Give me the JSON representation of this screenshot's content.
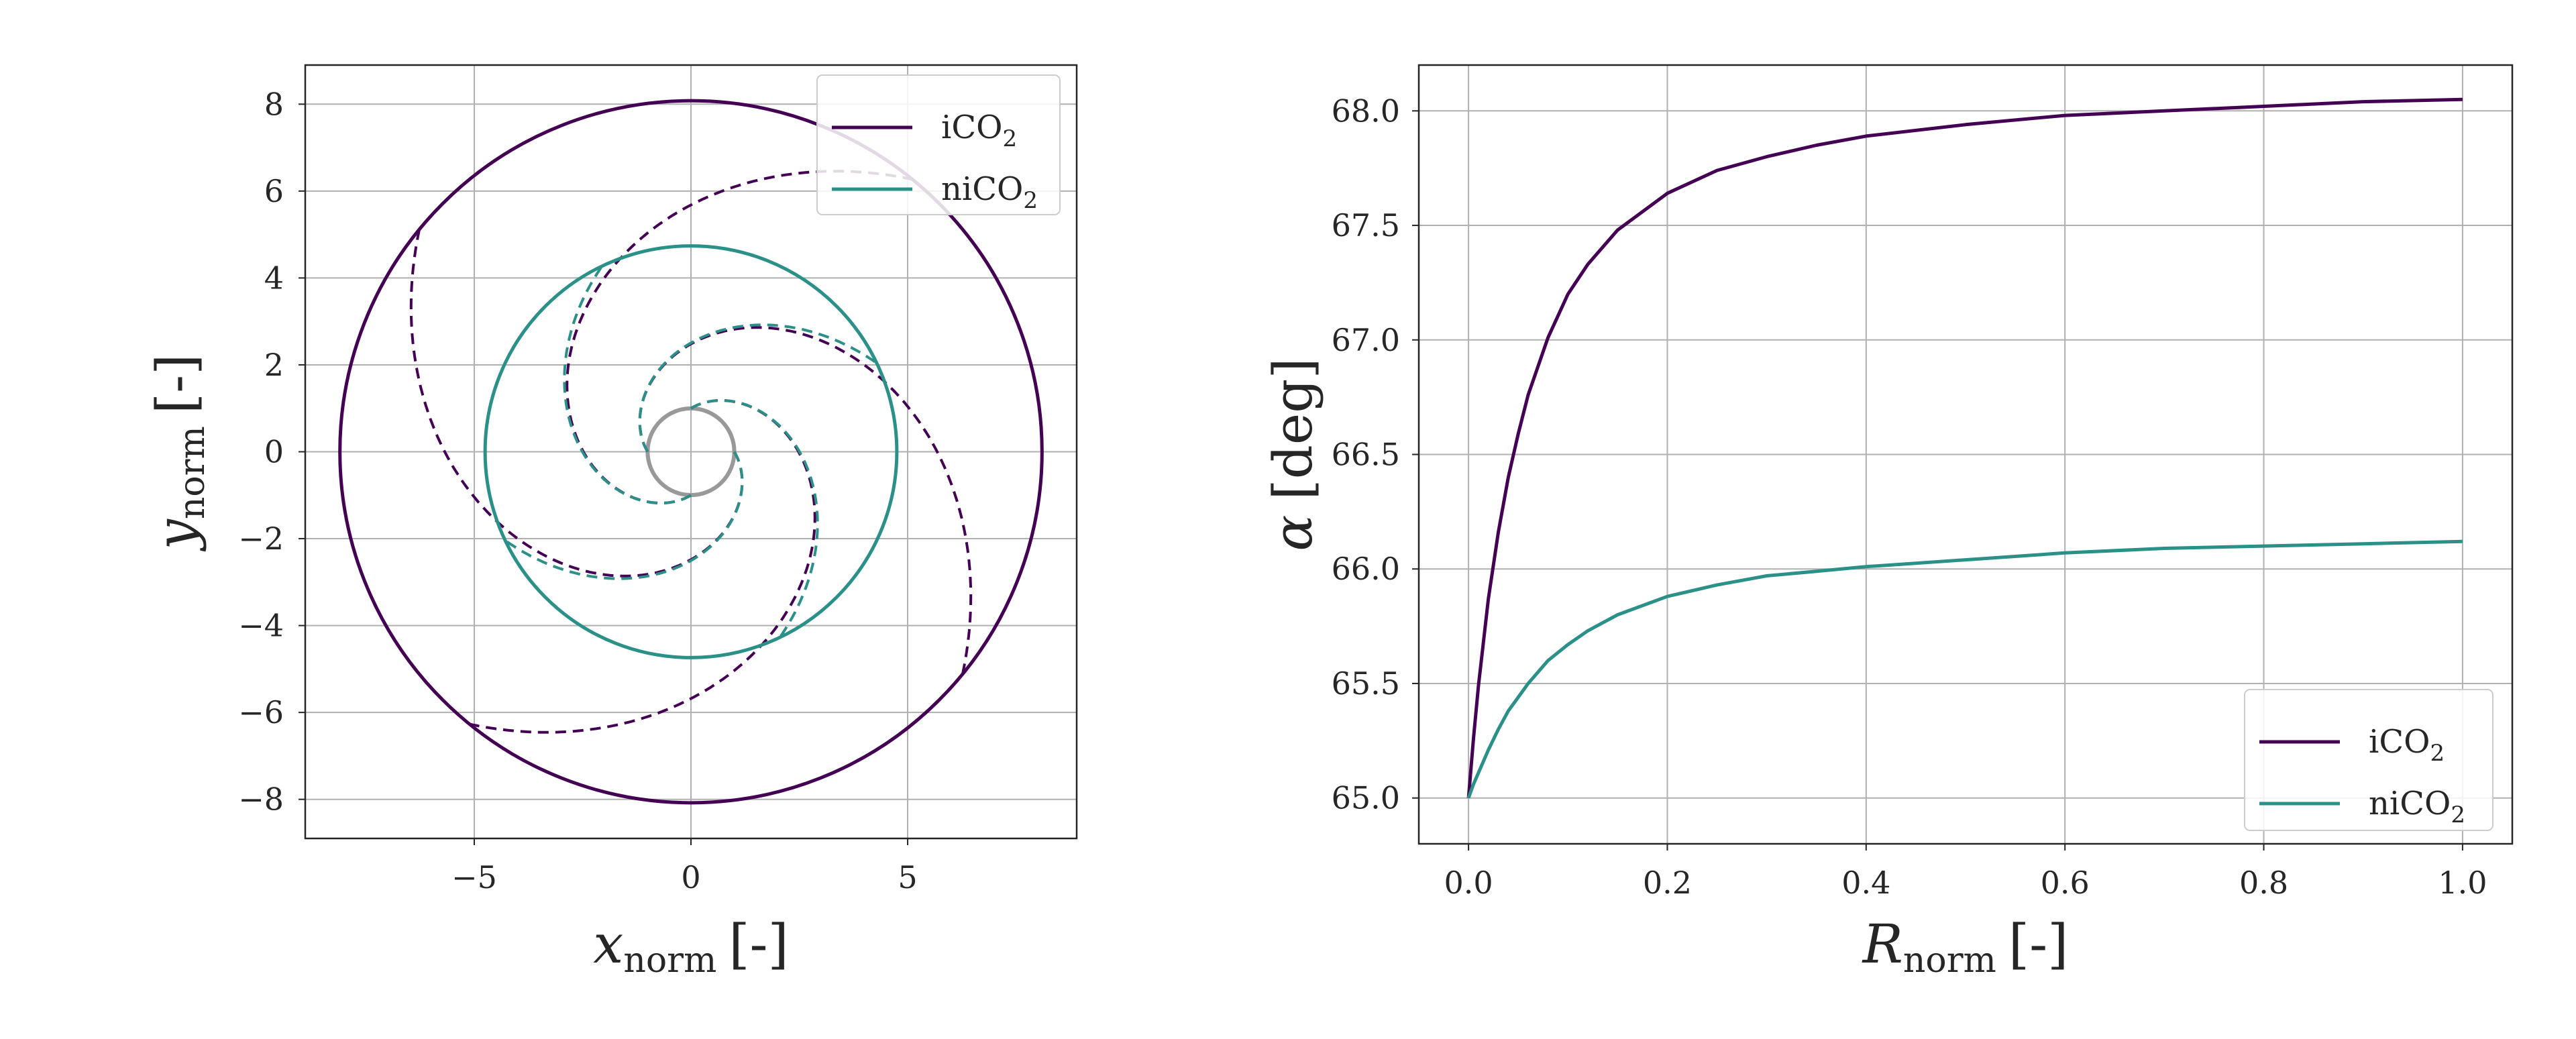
{
  "chart_data": [
    {
      "type": "line",
      "subtype": "spiral_streamlines",
      "xlabel": {
        "symbol": "x",
        "subscript": "norm",
        "unit": "[-]"
      },
      "ylabel": {
        "symbol": "y",
        "subscript": "norm",
        "unit": "[-]"
      },
      "xlim": [
        -8.9,
        8.9
      ],
      "ylim": [
        -8.9,
        8.9
      ],
      "xticks": [
        -5,
        0,
        5
      ],
      "xtick_labels": [
        "−5",
        "0",
        "5"
      ],
      "yticks": [
        -8,
        -6,
        -4,
        -2,
        0,
        2,
        4,
        6,
        8
      ],
      "ytick_labels": [
        "−8",
        "−6",
        "−4",
        "−2",
        "0",
        "2",
        "4",
        "6",
        "8"
      ],
      "grid": true,
      "legend": {
        "placement": "top-right"
      },
      "series": [
        {
          "name": "iCO2",
          "label_base": "iCO",
          "label_sub": "2",
          "color": "#440154",
          "outer_radius": 8.1,
          "alpha_start_deg": 65.0,
          "alpha_end_deg": 68.05,
          "spiral_count": 4,
          "spiral_start_angles_deg": [
            0,
            90,
            180,
            270
          ]
        },
        {
          "name": "niCO2",
          "label_base": "niCO",
          "label_sub": "2",
          "color": "#2a9088",
          "outer_radius": 4.75,
          "alpha_start_deg": 65.0,
          "alpha_end_deg": 66.12,
          "spiral_count": 4,
          "spiral_start_angles_deg": [
            0,
            90,
            180,
            270
          ]
        }
      ],
      "inner_circle": {
        "radius": 1.0,
        "color": "#999999"
      }
    },
    {
      "type": "line",
      "xlabel": {
        "symbol": "R",
        "subscript": "norm",
        "unit": "[-]"
      },
      "ylabel": {
        "symbol": "α",
        "unit": "[deg]"
      },
      "xlim": [
        -0.05,
        1.05
      ],
      "ylim": [
        64.8,
        68.2
      ],
      "xticks": [
        0.0,
        0.2,
        0.4,
        0.6,
        0.8,
        1.0
      ],
      "xtick_labels": [
        "0.0",
        "0.2",
        "0.4",
        "0.6",
        "0.8",
        "1.0"
      ],
      "yticks": [
        65.0,
        65.5,
        66.0,
        66.5,
        67.0,
        67.5,
        68.0
      ],
      "ytick_labels": [
        "65.0",
        "65.5",
        "66.0",
        "66.5",
        "67.0",
        "67.5",
        "68.0"
      ],
      "grid": true,
      "legend": {
        "placement": "bottom-right"
      },
      "x": [
        0.0,
        0.005,
        0.01,
        0.02,
        0.03,
        0.04,
        0.05,
        0.06,
        0.08,
        0.1,
        0.12,
        0.15,
        0.2,
        0.25,
        0.3,
        0.35,
        0.4,
        0.5,
        0.6,
        0.7,
        0.8,
        0.9,
        1.0
      ],
      "series": [
        {
          "name": "iCO2",
          "label_base": "iCO",
          "label_sub": "2",
          "color": "#440154",
          "values": [
            65.0,
            65.26,
            65.49,
            65.87,
            66.16,
            66.4,
            66.59,
            66.76,
            67.01,
            67.2,
            67.33,
            67.48,
            67.64,
            67.74,
            67.8,
            67.85,
            67.89,
            67.94,
            67.98,
            68.0,
            68.02,
            68.04,
            68.05
          ]
        },
        {
          "name": "niCO2",
          "label_base": "niCO",
          "label_sub": "2",
          "color": "#2a9088",
          "values": [
            65.0,
            65.06,
            65.11,
            65.21,
            65.3,
            65.38,
            65.44,
            65.5,
            65.6,
            65.67,
            65.73,
            65.8,
            65.88,
            65.93,
            65.97,
            65.99,
            66.01,
            66.04,
            66.07,
            66.09,
            66.1,
            66.11,
            66.12
          ]
        }
      ]
    }
  ]
}
